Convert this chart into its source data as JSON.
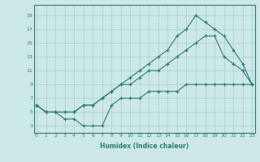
{
  "line1_x": [
    0,
    1,
    2,
    3,
    4,
    5,
    6,
    7,
    8,
    9,
    10,
    11,
    12,
    13,
    14,
    15,
    16,
    17,
    18,
    19,
    20,
    21,
    22,
    23
  ],
  "line1_y": [
    6,
    5,
    5,
    5,
    5,
    6,
    6,
    7,
    8,
    9,
    10,
    11,
    12,
    13,
    14,
    16,
    17,
    19,
    18,
    17,
    16,
    14,
    12,
    9
  ],
  "line2_x": [
    0,
    1,
    2,
    3,
    4,
    5,
    6,
    7,
    8,
    9,
    10,
    11,
    12,
    13,
    14,
    15,
    16,
    17,
    18,
    19,
    20,
    21,
    22,
    23
  ],
  "line2_y": [
    6,
    5,
    5,
    5,
    5,
    6,
    6,
    7,
    8,
    9,
    9,
    10,
    11,
    11,
    12,
    13,
    14,
    15,
    16,
    16,
    13,
    12,
    11,
    9
  ],
  "line3_x": [
    0,
    1,
    2,
    3,
    4,
    5,
    6,
    7,
    8,
    9,
    10,
    11,
    12,
    13,
    14,
    15,
    16,
    17,
    18,
    19,
    20,
    21,
    22,
    23
  ],
  "line3_y": [
    6,
    5,
    5,
    4,
    4,
    3,
    3,
    3,
    6,
    7,
    7,
    7,
    8,
    8,
    8,
    8,
    9,
    9,
    9,
    9,
    9,
    9,
    9,
    9
  ],
  "line_color": "#2e7d6e",
  "bg_color": "#cce8e8",
  "grid_color": "#aacccc",
  "xlabel": "Humidex (Indice chaleur)",
  "yticks": [
    3,
    5,
    7,
    9,
    11,
    13,
    15,
    17,
    19
  ],
  "xticks": [
    0,
    1,
    2,
    3,
    4,
    5,
    6,
    7,
    8,
    9,
    10,
    11,
    12,
    13,
    14,
    15,
    16,
    17,
    18,
    19,
    20,
    21,
    22,
    23
  ],
  "xlim": [
    -0.3,
    23.3
  ],
  "ylim": [
    2.0,
    20.5
  ]
}
